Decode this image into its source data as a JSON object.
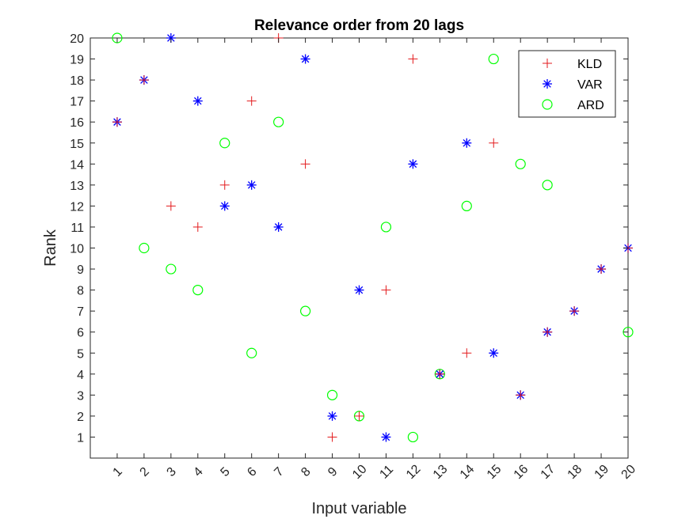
{
  "chart_data": {
    "type": "scatter",
    "title": "Relevance order from 20 lags",
    "xlabel": "Input variable",
    "ylabel": "Rank",
    "xlim": [
      0,
      20
    ],
    "ylim": [
      0,
      20
    ],
    "x_ticks": [
      "1",
      "2",
      "3",
      "4",
      "5",
      "6",
      "7",
      "8",
      "9",
      "10",
      "11",
      "12",
      "13",
      "14",
      "15",
      "16",
      "17",
      "18",
      "19",
      "20"
    ],
    "y_ticks": [
      "1",
      "2",
      "3",
      "4",
      "5",
      "6",
      "7",
      "8",
      "9",
      "10",
      "11",
      "12",
      "13",
      "14",
      "15",
      "16",
      "17",
      "18",
      "19",
      "20"
    ],
    "grid": false,
    "legend_position": "top-right",
    "series": [
      {
        "name": "KLD",
        "marker": "plus",
        "color": "#e31a1c",
        "x": [
          1,
          2,
          3,
          4,
          5,
          6,
          7,
          8,
          9,
          10,
          11,
          12,
          13,
          14,
          15,
          16,
          17,
          18,
          19,
          20
        ],
        "y": [
          16,
          18,
          12,
          11,
          13,
          17,
          20,
          14,
          1,
          2,
          8,
          19,
          4,
          5,
          15,
          3,
          6,
          7,
          9,
          10
        ]
      },
      {
        "name": "VAR",
        "marker": "asterisk",
        "color": "#0000ff",
        "x": [
          1,
          2,
          3,
          4,
          5,
          6,
          7,
          8,
          9,
          10,
          11,
          12,
          13,
          14,
          15,
          16,
          17,
          18,
          19,
          20
        ],
        "y": [
          16,
          18,
          20,
          17,
          12,
          13,
          11,
          19,
          2,
          8,
          1,
          14,
          4,
          15,
          5,
          3,
          6,
          7,
          9,
          10
        ]
      },
      {
        "name": "ARD",
        "marker": "circle",
        "color": "#00ff00",
        "x": [
          1,
          2,
          3,
          4,
          5,
          6,
          7,
          8,
          9,
          10,
          11,
          12,
          13,
          14,
          15,
          16,
          17,
          20
        ],
        "y": [
          20,
          10,
          9,
          8,
          15,
          5,
          16,
          7,
          3,
          2,
          11,
          1,
          4,
          12,
          19,
          14,
          13,
          6
        ]
      }
    ]
  }
}
